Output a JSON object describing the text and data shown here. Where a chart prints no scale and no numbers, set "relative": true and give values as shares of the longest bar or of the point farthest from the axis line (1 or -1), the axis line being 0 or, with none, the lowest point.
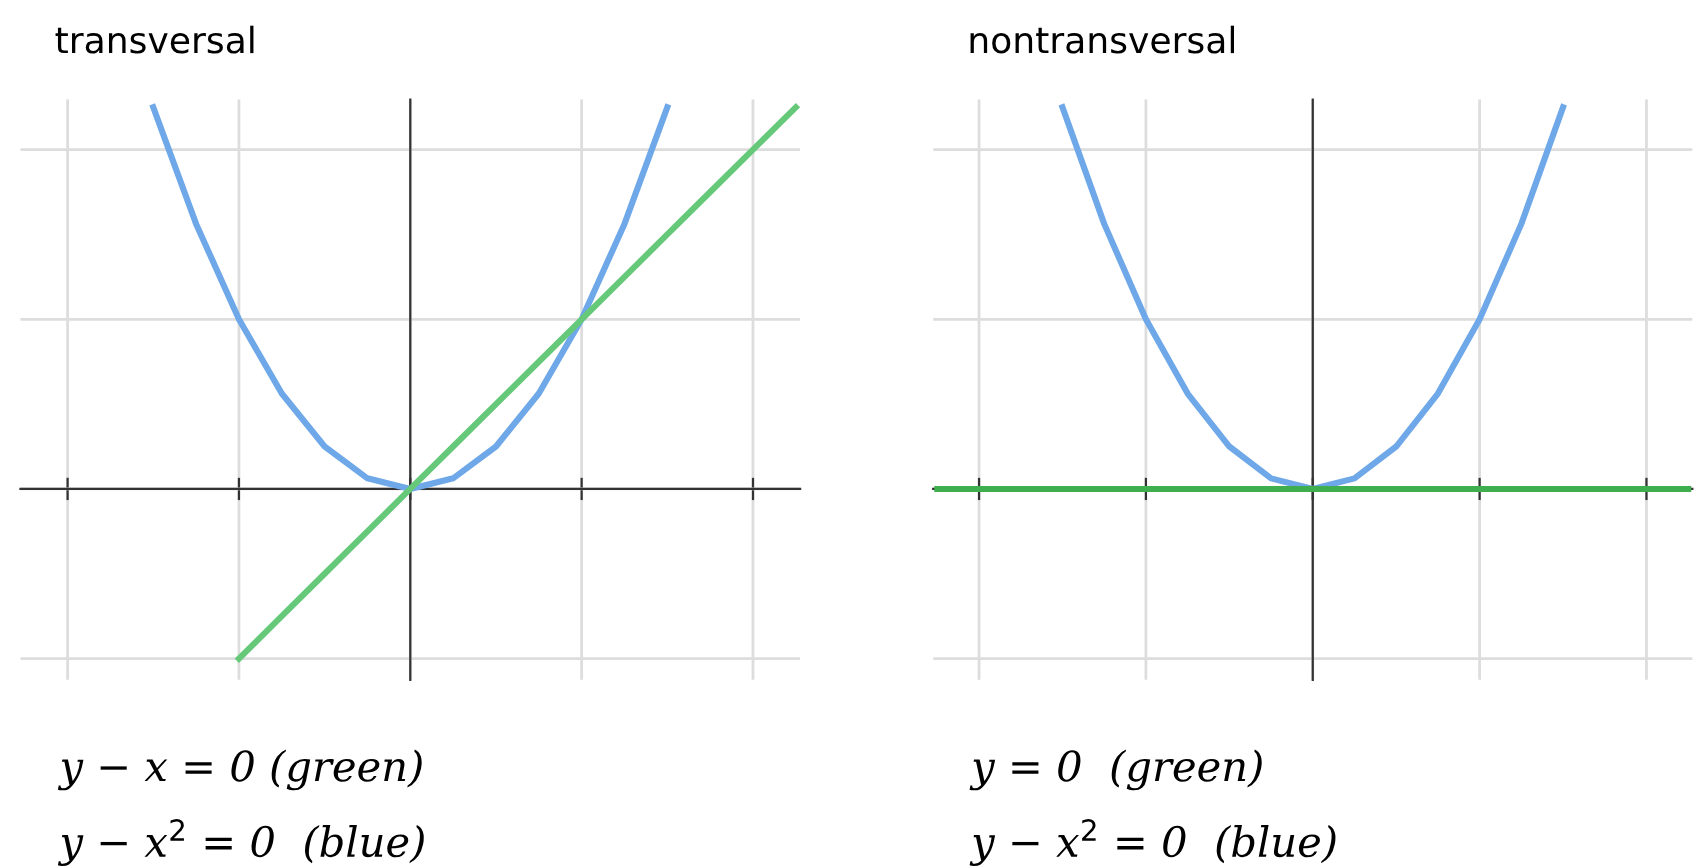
{
  "chart_data": [
    {
      "type": "line",
      "title": "transversal",
      "relative": true,
      "grid": true,
      "legend": false,
      "tick_labels": false,
      "marker": "none",
      "line_style": "solid",
      "categories": [
        null,
        null,
        null,
        null,
        null,
        null,
        null,
        null,
        null,
        null,
        null,
        null,
        null,
        null,
        null,
        null,
        null,
        null,
        null
      ],
      "series": [
        {
          "color": "#6fa8e8",
          "values": [
            null,
            null,
            null,
            1,
            0.6944,
            0.4444,
            0.25,
            0.1111,
            0.0278,
            0,
            0.0278,
            0.1111,
            0.25,
            0.4444,
            0.6944,
            1,
            null,
            null,
            null
          ]
        },
        {
          "color": "#66c97a",
          "values": [
            null,
            null,
            null,
            null,
            null,
            -0.4444,
            -0.3333,
            -0.2222,
            -0.1111,
            0,
            0.1111,
            0.2222,
            0.3333,
            0.4444,
            0.5556,
            0.6667,
            0.7778,
            0.8889,
            1
          ]
        }
      ],
      "annotations": [
        "y − x = 0 (green)",
        "y − x$^{2}$ = 0  (blue)"
      ]
    },
    {
      "type": "line",
      "title": "nontransversal",
      "relative": true,
      "grid": true,
      "legend": false,
      "tick_labels": false,
      "marker": "none",
      "line_style": "solid",
      "categories": [
        null,
        null,
        null,
        null,
        null,
        null,
        null,
        null,
        null,
        null,
        null,
        null,
        null,
        null,
        null,
        null,
        null,
        null,
        null
      ],
      "series": [
        {
          "color": "#6fa8e8",
          "values": [
            null,
            null,
            null,
            1,
            0.6944,
            0.4444,
            0.25,
            0.1111,
            0.0278,
            0,
            0.0278,
            0.1111,
            0.25,
            0.4444,
            0.6944,
            1,
            null,
            null,
            null
          ]
        },
        {
          "color": "#3fae4f",
          "values": [
            0,
            0,
            0,
            0,
            0,
            0,
            0,
            0,
            0,
            0,
            0,
            0,
            0,
            0,
            0,
            0,
            0,
            0,
            0
          ]
        }
      ],
      "annotations": [
        "y = 0  (green)",
        "y − x$^{2}$ = 0  (blue)"
      ]
    }
  ]
}
